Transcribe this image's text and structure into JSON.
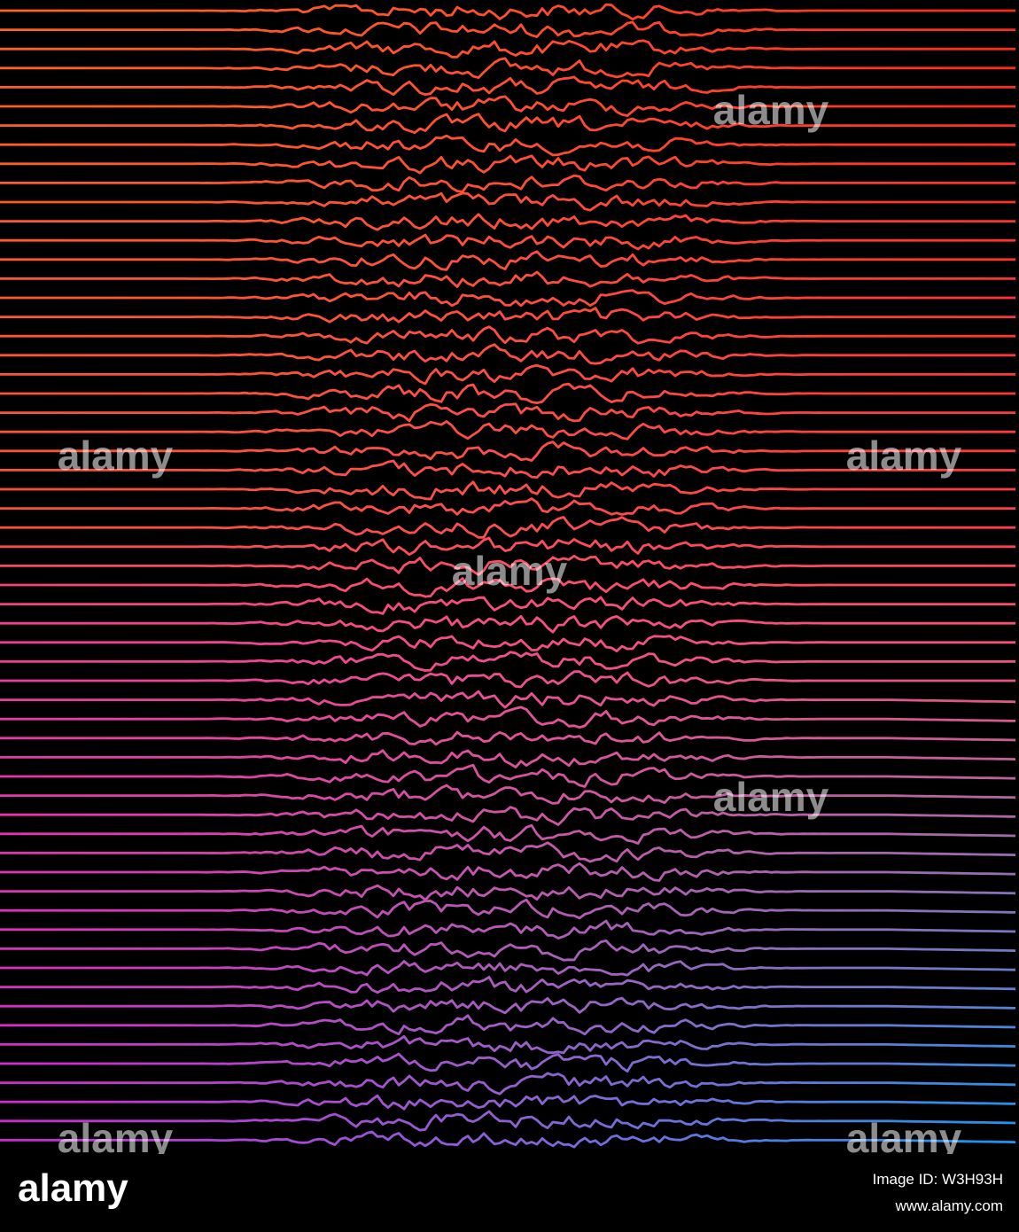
{
  "watermark": "alamy",
  "footer": {
    "logo": "alamy",
    "image_id": "Image ID: W3H93H",
    "url": "www.alamy.com"
  }
}
